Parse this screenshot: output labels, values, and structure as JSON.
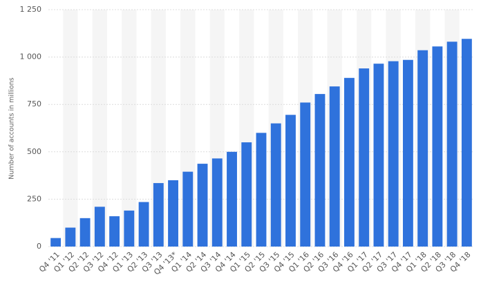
{
  "chart_data": {
    "type": "bar",
    "y_label": "Number of accounts in millions",
    "categories": [
      "Q4 '11",
      "Q1 '12",
      "Q2 '12",
      "Q3 '12",
      "Q4 '12",
      "Q1 '13",
      "Q2 '13",
      "Q3 '13",
      "Q4 '13*",
      "Q1 '14",
      "Q2 '14",
      "Q3 '14",
      "Q4 '14",
      "Q1 '15",
      "Q2 '15",
      "Q3 '15",
      "Q4 '15",
      "Q1 '16",
      "Q2 '16",
      "Q3 '16",
      "Q4 '16",
      "Q1 '17",
      "Q2 '17",
      "Q3 '17",
      "Q4 '17",
      "Q1 '18",
      "Q2 '18",
      "Q3 '18",
      "Q4 '18"
    ],
    "values": [
      45,
      100,
      150,
      210,
      160,
      190,
      235,
      335,
      350,
      395,
      437,
      465,
      500,
      550,
      600,
      650,
      695,
      760,
      805,
      845,
      890,
      940,
      965,
      978,
      985,
      1036,
      1056,
      1081,
      1096
    ],
    "color": "#2f72dc",
    "ylim": [
      0,
      1250
    ],
    "yticks": [
      0,
      250,
      500,
      750,
      {
        "value": 1000,
        "label": "1 000"
      },
      {
        "value": 1250,
        "label": "1 250"
      }
    ],
    "grid": true
  }
}
